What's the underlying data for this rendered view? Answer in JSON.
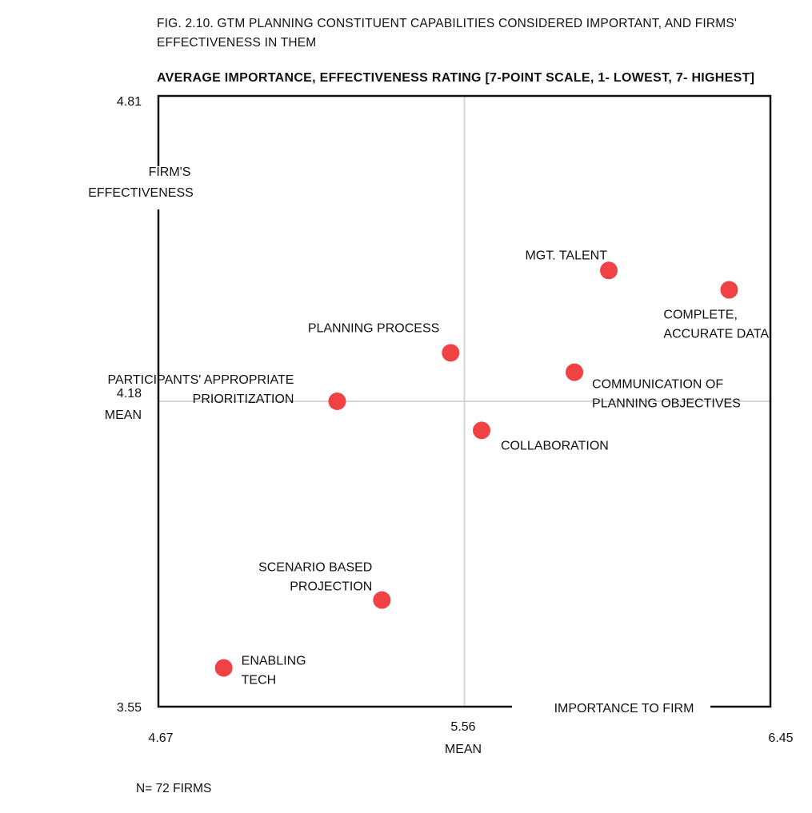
{
  "chart_data": {
    "type": "scatter",
    "title_lines": [
      "FIG. 2.10. GTM PLANNING CONSTITUENT CAPABILITIES CONSIDERED IMPORTANT, AND FIRMS'",
      "EFFECTIVENESS IN THEM"
    ],
    "subtitle": "AVERAGE IMPORTANCE, EFFECTIVENESS RATING [7-POINT SCALE, 1- LOWEST, 7- HIGHEST]",
    "xlabel": "IMPORTANCE TO FIRM",
    "ylabel_lines": [
      "FIRM'S",
      "EFFECTIVENESS"
    ],
    "xlim": [
      4.67,
      6.45
    ],
    "ylim": [
      3.55,
      4.81
    ],
    "x_ticks": [
      "4.67",
      "5.56",
      "6.45"
    ],
    "y_ticks": [
      "3.55",
      "4.18",
      "4.81"
    ],
    "x_mean": 5.56,
    "y_mean": 4.18,
    "x_mean_label": "MEAN",
    "y_mean_label": "MEAN",
    "marker_color": "#f04245",
    "points": [
      {
        "label_lines": [
          "MGT. TALENT"
        ],
        "x": 5.98,
        "y": 4.45
      },
      {
        "label_lines": [
          "COMPLETE,",
          "ACCURATE DATA"
        ],
        "x": 6.33,
        "y": 4.41
      },
      {
        "label_lines": [
          "PLANNING PROCESS"
        ],
        "x": 5.52,
        "y": 4.28
      },
      {
        "label_lines": [
          "COMMUNICATION OF",
          "PLANNING OBJECTIVES"
        ],
        "x": 5.88,
        "y": 4.24
      },
      {
        "label_lines": [
          "PARTICIPANTS' APPROPRIATE",
          "PRIORITIZATION"
        ],
        "x": 5.19,
        "y": 4.18
      },
      {
        "label_lines": [
          "COLLABORATION"
        ],
        "x": 5.61,
        "y": 4.12
      },
      {
        "label_lines": [
          "SCENARIO BASED",
          "PROJECTION"
        ],
        "x": 5.32,
        "y": 3.77
      },
      {
        "label_lines": [
          "ENABLING",
          "TECH"
        ],
        "x": 4.86,
        "y": 3.63
      }
    ]
  },
  "footnote": "N= 72 FIRMS"
}
